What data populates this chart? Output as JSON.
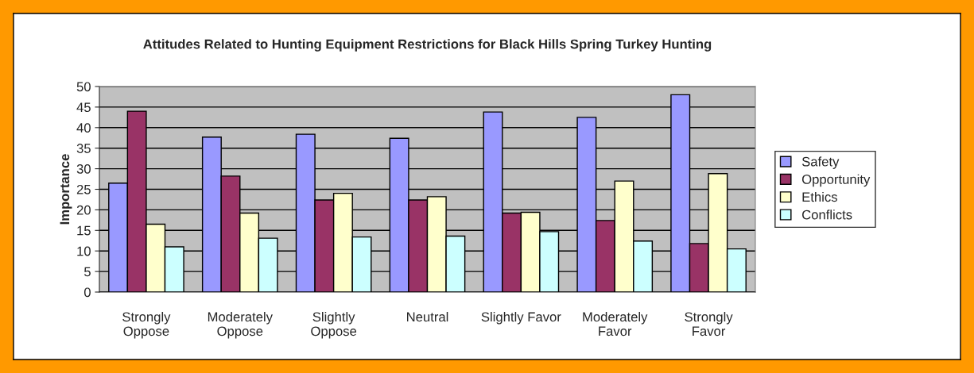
{
  "chart_data": {
    "type": "bar",
    "title": "Attitudes Related to Hunting Equipment Restrictions for Black Hills Spring Turkey Hunting",
    "ylabel": "Importance",
    "categories": [
      "Strongly\nOppose",
      "Moderately\nOppose",
      "Slightly\nOppose",
      "Neutral",
      "Slightly Favor",
      "Moderately\nFavor",
      "Strongly\nFavor"
    ],
    "series": [
      {
        "name": "Safety",
        "color": "#9999ff",
        "values": [
          26.5,
          37.7,
          38.4,
          37.4,
          43.8,
          42.5,
          48.0
        ]
      },
      {
        "name": "Opportunity",
        "color": "#993366",
        "values": [
          44.0,
          28.2,
          22.4,
          22.4,
          19.2,
          17.4,
          11.8
        ]
      },
      {
        "name": "Ethics",
        "color": "#ffffcc",
        "values": [
          16.5,
          19.2,
          24.0,
          23.2,
          19.4,
          27.0,
          28.8
        ]
      },
      {
        "name": "Conflicts",
        "color": "#ccffff",
        "values": [
          11.0,
          13.1,
          13.4,
          13.6,
          14.7,
          12.4,
          10.5
        ]
      }
    ],
    "ylim": [
      0,
      50
    ],
    "yticks": [
      0,
      5,
      10,
      15,
      20,
      25,
      30,
      35,
      40,
      45,
      50
    ],
    "grid": "y",
    "legend": "right"
  }
}
